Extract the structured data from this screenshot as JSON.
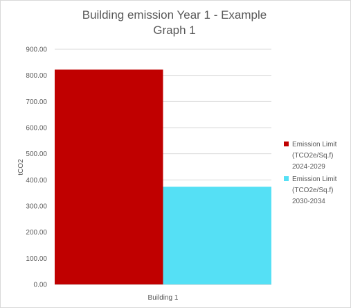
{
  "chart_data": {
    "type": "bar",
    "title_lines": [
      "Building emission Year 1 - Example",
      "Graph 1"
    ],
    "xlabel": "",
    "ylabel": "tCO2",
    "categories": [
      "Building 1"
    ],
    "ylim": [
      0,
      900
    ],
    "yticks": [
      "0.00",
      "100.00",
      "200.00",
      "300.00",
      "400.00",
      "500.00",
      "600.00",
      "700.00",
      "800.00",
      "900.00"
    ],
    "grid": true,
    "legend_position": "right",
    "series": [
      {
        "name_lines": [
          "Emission Limit",
          "(TCO2e/Sq.f)",
          "2024-2029"
        ],
        "color": "#c00000",
        "values": [
          822
        ]
      },
      {
        "name_lines": [
          "Emission Limit",
          "(TCO2e/Sq.f)",
          "2030-2034"
        ],
        "color": "#55e0f5",
        "values": [
          374
        ]
      }
    ]
  }
}
